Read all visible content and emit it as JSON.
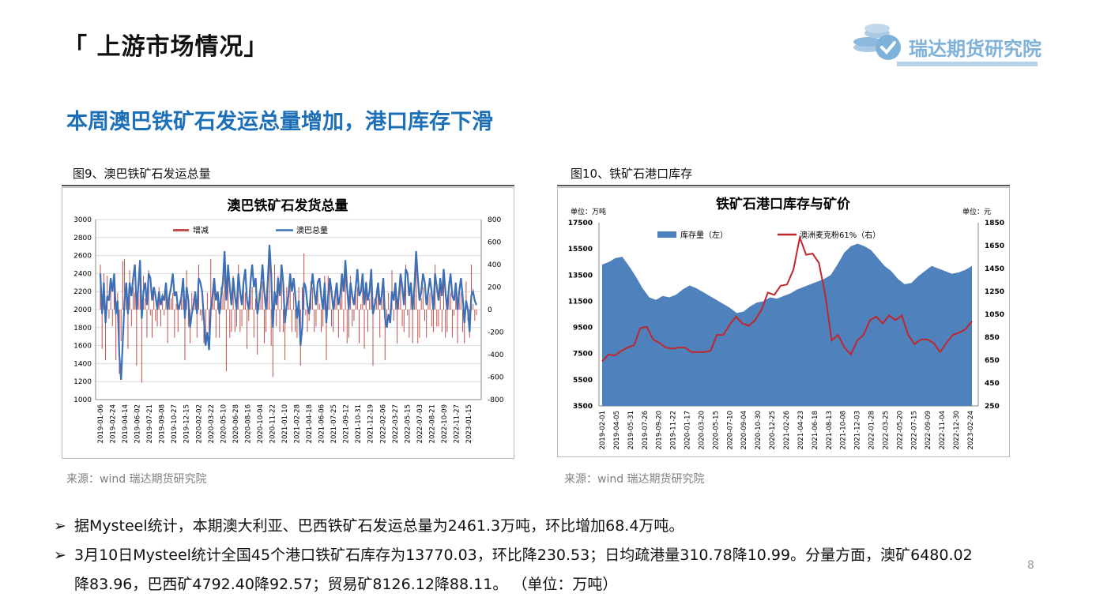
{
  "header": {
    "title": "「 上游市场情况」",
    "logo_text": "瑞达期货研究院",
    "subtitle": "本周澳巴铁矿石发运总量增加，港口库存下滑"
  },
  "figures": [
    {
      "caption": "图9、澳巴铁矿石发运总量",
      "source": "来源：wind   瑞达期货研究院"
    },
    {
      "caption": "图10、铁矿石港口库存",
      "source": "来源：wind   瑞达期货研究院"
    }
  ],
  "bullets": [
    "据Mysteel统计，本期澳大利亚、巴西铁矿石发运总量为2461.3万吨，环比增加68.4万吨。",
    "3月10日Mysteel统计全国45个港口铁矿石库存为13770.03，环比降230.53；日均疏港量310.78降10.99。分量方面，澳矿6480.02",
    "降83.96，巴西矿4792.40降92.57；贸易矿8126.12降88.11。 （单位：万吨）"
  ],
  "page_number": "8",
  "colors": {
    "blue_line": "#3d6fb6",
    "red_bar": "#c0504d",
    "area_fill": "#4f81bd",
    "red_line": "#c0272d",
    "accent": "#1d6fb8"
  },
  "chart_data": [
    {
      "type": "line",
      "title": "澳巴铁矿石发货总量",
      "legend": [
        "增减",
        "澳巴总量"
      ],
      "legend_position": "top",
      "y_left": {
        "range": [
          1000,
          3000
        ],
        "ticks": [
          1000,
          1200,
          1400,
          1600,
          1800,
          2000,
          2200,
          2400,
          2600,
          2800,
          3000
        ]
      },
      "y_right": {
        "range": [
          -800,
          800
        ],
        "ticks": [
          -800,
          -600,
          -400,
          -200,
          0,
          200,
          400,
          600,
          800
        ]
      },
      "x_ticks": [
        "2019-01-06",
        "2019-02-24",
        "2019-04-14",
        "2019-06-02",
        "2019-07-21",
        "2019-09-08",
        "2019-10-27",
        "2019-12-15",
        "2020-02-02",
        "2020-03-22",
        "2020-05-10",
        "2020-06-28",
        "2020-08-16",
        "2020-10-04",
        "2020-11-22",
        "2021-01-10",
        "2021-02-28",
        "2021-04-18",
        "2021-06-06",
        "2021-07-25",
        "2021-09-12",
        "2021-10-31",
        "2021-12-19",
        "2022-02-06",
        "2022-03-27",
        "2022-05-15",
        "2022-07-03",
        "2022-08-21",
        "2022-10-09",
        "2022-11-27",
        "2023-01-15"
      ],
      "series": [
        {
          "name": "澳巴总量",
          "axis": "left",
          "values": [
            2400,
            1950,
            2300,
            1850,
            2150,
            2100,
            2350,
            2200,
            2400,
            1950,
            2100,
            1500,
            1220,
            1650,
            2100,
            2300,
            1950,
            2300,
            2150,
            2350,
            2500,
            2000,
            2250,
            2550,
            1900,
            2200,
            2300,
            2050,
            2400,
            2350,
            2100,
            2250,
            2150,
            2000,
            2200,
            2050,
            2150,
            2100,
            2300,
            2000,
            2150,
            2250,
            2400,
            2150,
            2200,
            2000,
            2050,
            2150,
            2350,
            1900,
            2250,
            2100,
            1800,
            1950,
            2050,
            2200,
            1950,
            2350,
            2300,
            2200,
            1900,
            1600,
            1750,
            1550,
            2000,
            2150,
            2350,
            2100,
            2200,
            1950,
            2150,
            2300,
            2650,
            2100,
            2500,
            2250,
            2050,
            2350,
            2150,
            2000,
            2400,
            2200,
            2050,
            2300,
            2450,
            2100,
            2000,
            2300,
            2500,
            2250,
            2350,
            1950,
            2100,
            2250,
            2500,
            2200,
            2000,
            2300,
            2720,
            2400,
            1800,
            2200,
            2050,
            2350,
            2150,
            2500,
            2300,
            1850,
            2050,
            2150,
            2400,
            2200,
            2350,
            2150,
            1900,
            2100,
            1600,
            1800,
            2300,
            2250,
            2050,
            1950,
            2200,
            2400,
            2200,
            2050,
            2300,
            2350,
            2150,
            2000,
            2300,
            1850,
            2150,
            2350,
            2200,
            2000,
            2150,
            2300,
            2050,
            2150,
            2400,
            2200,
            2550,
            2250,
            2000,
            2300,
            2150,
            2050,
            2250,
            2450,
            2150,
            2200,
            2400,
            2050,
            2300,
            2100,
            2200,
            2450,
            1950,
            2050,
            2150,
            2300,
            2050,
            2150,
            2350,
            1900,
            1800,
            1950,
            1850,
            2200,
            2100,
            2300,
            2000,
            2150,
            2400,
            2250,
            2050,
            2450,
            2400,
            2150,
            2300,
            2000,
            2250,
            2650,
            2350,
            2100,
            2200,
            2400,
            2300,
            2050,
            2200,
            2350,
            2200,
            2000,
            2400,
            2250,
            2100,
            2350,
            2150,
            2450,
            2200,
            2000,
            2250,
            2400,
            2150,
            2100,
            2300,
            2000,
            2200,
            2350,
            2150,
            1850,
            2100,
            2000,
            1750,
            2150,
            2200,
            2100,
            2050
          ]
        },
        {
          "name": "增减",
          "axis": "right",
          "values": [
            400,
            -350,
            320,
            -450,
            300,
            -80,
            250,
            -150,
            200,
            -450,
            150,
            -570,
            -280,
            430,
            450,
            200,
            -350,
            350,
            -150,
            200,
            150,
            -500,
            250,
            300,
            -650,
            300,
            100,
            -250,
            350,
            -50,
            -250,
            150,
            -100,
            -150,
            200,
            -150,
            100,
            -50,
            200,
            -300,
            150,
            100,
            150,
            -250,
            50,
            -200,
            50,
            100,
            200,
            -450,
            350,
            -150,
            -300,
            150,
            100,
            150,
            -250,
            400,
            -50,
            -100,
            -300,
            -300,
            150,
            -200,
            450,
            150,
            200,
            -250,
            100,
            -250,
            200,
            150,
            350,
            -550,
            400,
            -250,
            -200,
            300,
            -200,
            -150,
            400,
            -200,
            -150,
            250,
            150,
            -350,
            -100,
            300,
            200,
            -250,
            100,
            -400,
            150,
            150,
            250,
            -300,
            -200,
            300,
            420,
            -320,
            -600,
            400,
            -150,
            300,
            -200,
            350,
            -200,
            -450,
            200,
            100,
            250,
            -200,
            150,
            -200,
            -250,
            200,
            -500,
            200,
            500,
            -50,
            -200,
            -100,
            250,
            200,
            -200,
            -150,
            250,
            50,
            -200,
            -150,
            300,
            -450,
            300,
            200,
            -150,
            -200,
            150,
            150,
            -250,
            100,
            250,
            -200,
            350,
            -300,
            -250,
            300,
            -150,
            -100,
            200,
            200,
            -300,
            50,
            200,
            -350,
            250,
            -200,
            100,
            250,
            -500,
            100,
            100,
            150,
            -250,
            100,
            200,
            -450,
            -100,
            150,
            -100,
            350,
            -100,
            200,
            -300,
            150,
            250,
            -150,
            -200,
            400,
            -50,
            -250,
            150,
            -300,
            250,
            400,
            -300,
            -250,
            100,
            200,
            -100,
            -250,
            150,
            150,
            -150,
            -200,
            400,
            -150,
            -150,
            250,
            -200,
            300,
            -250,
            -200,
            250,
            150,
            -250,
            -50,
            200,
            -300,
            200,
            150,
            -200,
            -300,
            250,
            -100,
            -250,
            400,
            50,
            -100,
            -50
          ]
        }
      ]
    },
    {
      "type": "area",
      "title": "铁矿石港口库存与矿价",
      "unit_left": "单位：万吨",
      "unit_right": "单位：元",
      "legend": [
        "库存量（左）",
        "澳洲麦克粉61%（右）"
      ],
      "legend_position": "top",
      "y_left": {
        "range": [
          3500,
          17500
        ],
        "ticks": [
          3500,
          5500,
          7500,
          9500,
          11500,
          13500,
          15500,
          17500
        ]
      },
      "y_right": {
        "range": [
          250,
          1850
        ],
        "ticks": [
          250,
          450,
          650,
          850,
          1050,
          1250,
          1450,
          1650,
          1850
        ]
      },
      "x_ticks": [
        "2019-02-01",
        "2019-04-05",
        "2019-05-31",
        "2019-07-26",
        "2019-09-20",
        "2019-11-22",
        "2020-01-17",
        "2020-03-20",
        "2020-05-15",
        "2020-07-10",
        "2020-09-04",
        "2020-10-30",
        "2020-12-25",
        "2021-02-26",
        "2021-04-23",
        "2021-06-18",
        "2021-08-13",
        "2021-10-08",
        "2021-12-03",
        "2022-01-28",
        "2022-03-25",
        "2022-05-20",
        "2022-07-15",
        "2022-09-09",
        "2022-11-04",
        "2022-12-30",
        "2023-02-24"
      ],
      "series": [
        {
          "name": "库存量（左）",
          "axis": "left",
          "values": [
            14300,
            14500,
            14800,
            14900,
            14200,
            13400,
            12500,
            11800,
            11600,
            11900,
            11800,
            12000,
            12400,
            12700,
            12500,
            12200,
            11900,
            11600,
            11300,
            11000,
            10600,
            10700,
            11100,
            11400,
            11500,
            11800,
            11700,
            11900,
            12100,
            12400,
            12600,
            12800,
            13000,
            13200,
            13500,
            14300,
            15200,
            15700,
            15900,
            15700,
            15400,
            14800,
            14200,
            13800,
            13200,
            12800,
            12900,
            13400,
            13800,
            14200,
            14000,
            13800,
            13600,
            13700,
            13900,
            14200
          ]
        },
        {
          "name": "澳洲麦克粉61%（右）",
          "axis": "right",
          "values": [
            640,
            700,
            690,
            730,
            760,
            780,
            930,
            940,
            830,
            800,
            760,
            750,
            760,
            760,
            720,
            720,
            720,
            730,
            870,
            870,
            960,
            1030,
            970,
            950,
            1000,
            1090,
            1240,
            1220,
            1300,
            1310,
            1440,
            1720,
            1570,
            1580,
            1500,
            1220,
            820,
            870,
            760,
            700,
            820,
            870,
            1000,
            1030,
            970,
            1040,
            1000,
            1040,
            870,
            790,
            830,
            830,
            800,
            720,
            800,
            870,
            890,
            920,
            990
          ]
        }
      ]
    }
  ]
}
